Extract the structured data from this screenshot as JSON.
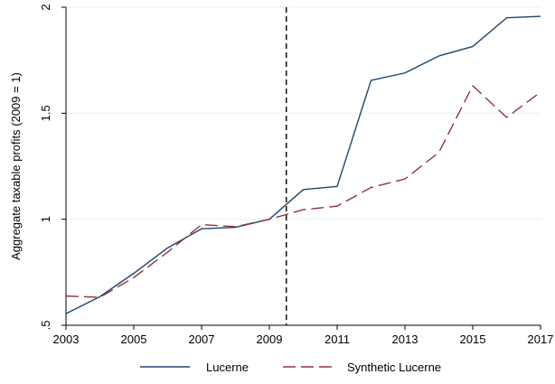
{
  "chart_data": {
    "type": "line",
    "title": "",
    "xlabel": "",
    "ylabel": "Aggregate taxable profits (2009 = 1)",
    "xlim": [
      2003,
      2017
    ],
    "ylim": [
      0.5,
      2
    ],
    "x_ticks": [
      2003,
      2005,
      2007,
      2009,
      2011,
      2013,
      2015,
      2017
    ],
    "y_ticks": [
      0.5,
      1,
      1.5,
      2
    ],
    "x_tick_labels": [
      "2003",
      "2005",
      "2007",
      "2009",
      "2011",
      "2013",
      "2015",
      "2017"
    ],
    "y_tick_labels": [
      ".5",
      "1",
      "1.5",
      "2"
    ],
    "grid": "horizontal",
    "legend_position": "bottom",
    "reference_line": {
      "x": 2009.5,
      "style": "dashed",
      "color": "#000000"
    },
    "x": [
      2003,
      2004,
      2005,
      2006,
      2007,
      2008,
      2009,
      2010,
      2011,
      2012,
      2013,
      2014,
      2015,
      2016,
      2017
    ],
    "series": [
      {
        "name": "Lucerne",
        "color": "#1a476f",
        "dash": "solid",
        "values": [
          0.555,
          0.635,
          0.745,
          0.865,
          0.955,
          0.962,
          1.0,
          1.14,
          1.155,
          1.655,
          1.69,
          1.77,
          1.815,
          1.95,
          1.957
        ]
      },
      {
        "name": "Synthetic Lucerne",
        "color": "#90353b",
        "dash": "longdash",
        "values": [
          0.638,
          0.632,
          0.725,
          0.845,
          0.975,
          0.965,
          1.0,
          1.045,
          1.062,
          1.15,
          1.19,
          1.315,
          1.63,
          1.48,
          1.6
        ]
      }
    ]
  }
}
